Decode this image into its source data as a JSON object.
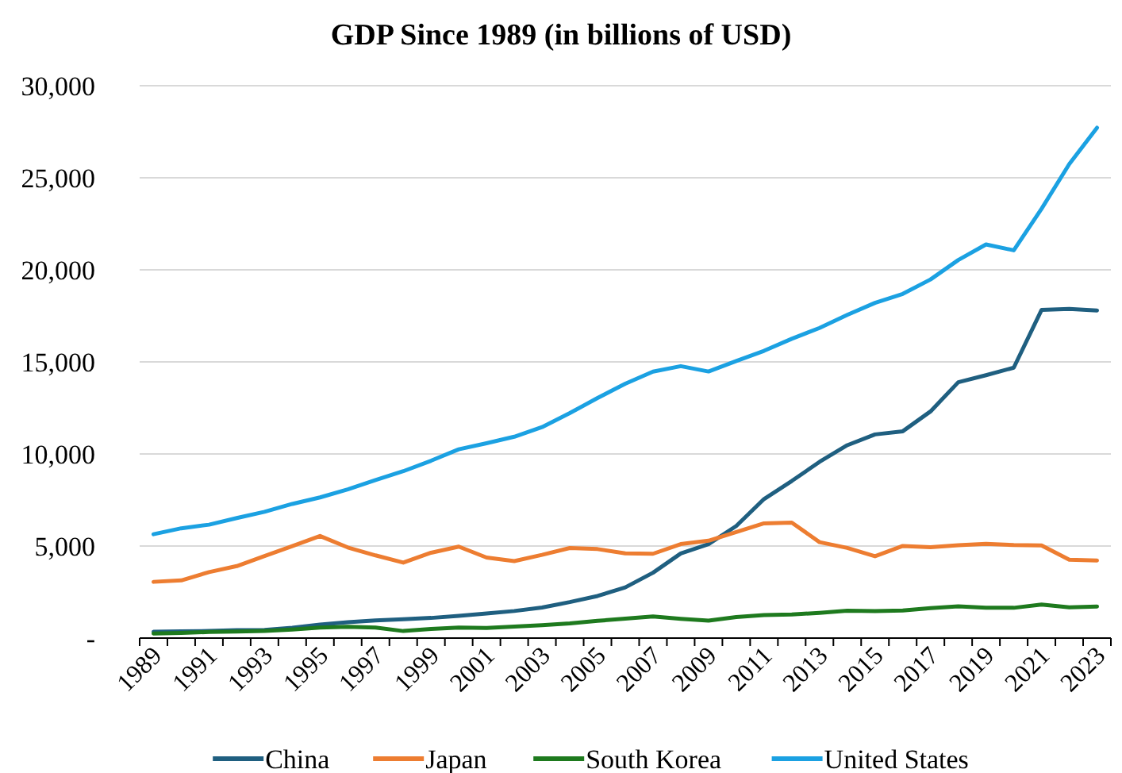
{
  "chart_data": {
    "type": "line",
    "title": "GDP Since 1989 (in billions of USD)",
    "categories": [
      "1989",
      null,
      "1991",
      null,
      "1993",
      null,
      "1995",
      null,
      "1997",
      null,
      "1999",
      null,
      "2001",
      null,
      "2003",
      null,
      "2005",
      null,
      "2007",
      null,
      "2009",
      null,
      "2011",
      null,
      "2013",
      null,
      "2015",
      null,
      "2017",
      null,
      "2019",
      null,
      "2021",
      null,
      "2023"
    ],
    "series": [
      {
        "name": "China",
        "color": "#1f5f80",
        "values": [
          347,
          361,
          383,
          427,
          445,
          564,
          734,
          863,
          961,
          1029,
          1094,
          1211,
          1339,
          1471,
          1660,
          1955,
          2286,
          2752,
          3550,
          4594,
          5101,
          6087,
          7552,
          8532,
          9570,
          10476,
          11062,
          11233,
          12310,
          13895,
          14280,
          14688,
          17820,
          17882,
          17795
        ]
      },
      {
        "name": "Japan",
        "color": "#ed7d31",
        "values": [
          3055,
          3133,
          3585,
          3909,
          4454,
          4999,
          5546,
          4923,
          4492,
          4098,
          4636,
          4968,
          4374,
          4183,
          4519,
          4894,
          4834,
          4601,
          4580,
          5106,
          5289,
          5759,
          6233,
          6272,
          5212,
          4897,
          4445,
          5004,
          4931,
          5041,
          5118,
          5055,
          5034,
          4256,
          4213
        ]
      },
      {
        "name": "South Korea",
        "color": "#1e7a1e",
        "values": [
          246,
          283,
          330,
          356,
          393,
          463,
          566,
          610,
          569,
          383,
          498,
          576,
          548,
          627,
          703,
          793,
          935,
          1053,
          1173,
          1047,
          944,
          1144,
          1253,
          1278,
          1370,
          1484,
          1466,
          1500,
          1624,
          1725,
          1651,
          1644,
          1818,
          1674,
          1713
        ]
      },
      {
        "name": "United States",
        "color": "#1ba1e2",
        "values": [
          5642,
          5963,
          6158,
          6520,
          6859,
          7287,
          7640,
          8073,
          8578,
          9063,
          9631,
          10251,
          10582,
          10936,
          11458,
          12217,
          13039,
          13815,
          14475,
          14770,
          14478,
          15049,
          15600,
          16254,
          16843,
          17551,
          18206,
          18695,
          19477,
          20533,
          21381,
          21060,
          23315,
          25744,
          27720
        ]
      }
    ],
    "ylim": [
      0,
      30000
    ],
    "yticks": [
      {
        "value": 0,
        "label": "-"
      },
      {
        "value": 5000,
        "label": "5,000"
      },
      {
        "value": 10000,
        "label": "10,000"
      },
      {
        "value": 15000,
        "label": "15,000"
      },
      {
        "value": 20000,
        "label": "20,000"
      },
      {
        "value": 25000,
        "label": "25,000"
      },
      {
        "value": 30000,
        "label": "30,000"
      }
    ],
    "grid": "y",
    "legend": "bottom",
    "marker": "none",
    "line_style": "solid"
  }
}
